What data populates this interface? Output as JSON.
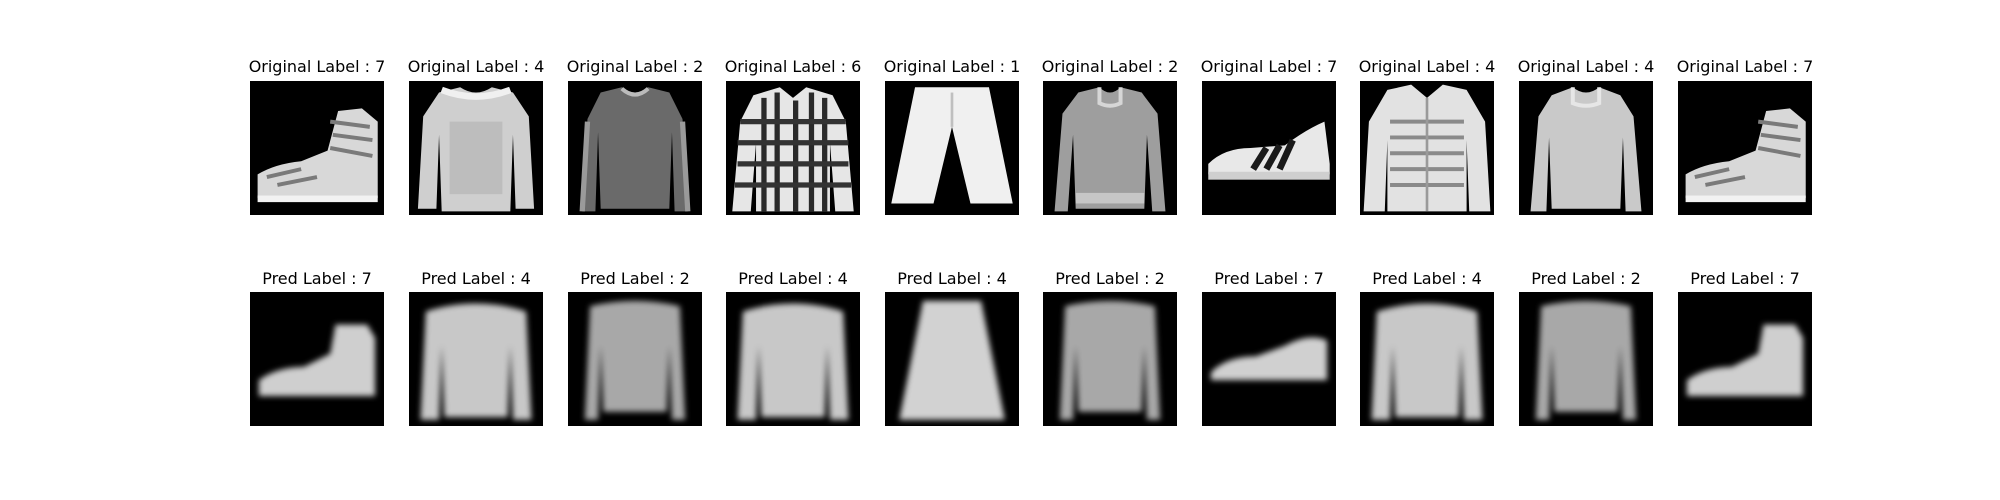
{
  "figure": {
    "rows": [
      {
        "row_name": "original",
        "items": [
          {
            "title": "Original Label : 7",
            "icon": "sneaker-high-icon",
            "style": "sharp"
          },
          {
            "title": "Original Label : 4",
            "icon": "sweater-icon",
            "style": "sharp"
          },
          {
            "title": "Original Label : 2",
            "icon": "longsleeve-dark-icon",
            "style": "sharp"
          },
          {
            "title": "Original Label : 6",
            "icon": "plaid-shirt-icon",
            "style": "sharp"
          },
          {
            "title": "Original Label : 1",
            "icon": "trouser-icon",
            "style": "sharp"
          },
          {
            "title": "Original Label : 2",
            "icon": "pullover-icon",
            "style": "sharp"
          },
          {
            "title": "Original Label : 7",
            "icon": "striped-sneaker-icon",
            "style": "sharp"
          },
          {
            "title": "Original Label : 4",
            "icon": "coat-icon",
            "style": "sharp"
          },
          {
            "title": "Original Label : 4",
            "icon": "pullover-light-icon",
            "style": "sharp"
          },
          {
            "title": "Original Label : 7",
            "icon": "sneaker-high-icon",
            "style": "sharp"
          }
        ]
      },
      {
        "row_name": "prediction",
        "items": [
          {
            "title": "Pred Label : 7",
            "icon": "blurry-sneaker-icon",
            "style": "blurry"
          },
          {
            "title": "Pred Label : 4",
            "icon": "blurry-coat-icon",
            "style": "blurry"
          },
          {
            "title": "Pred Label : 2",
            "icon": "blurry-pullover-icon",
            "style": "blurry"
          },
          {
            "title": "Pred Label : 4",
            "icon": "blurry-coat-icon",
            "style": "blurry"
          },
          {
            "title": "Pred Label : 4",
            "icon": "blurry-dress-icon",
            "style": "blurry"
          },
          {
            "title": "Pred Label : 2",
            "icon": "blurry-pullover-icon",
            "style": "blurry"
          },
          {
            "title": "Pred Label : 7",
            "icon": "blurry-flat-sneaker-icon",
            "style": "blurry"
          },
          {
            "title": "Pred Label : 4",
            "icon": "blurry-coat-icon",
            "style": "blurry"
          },
          {
            "title": "Pred Label : 2",
            "icon": "blurry-pullover-icon",
            "style": "blurry"
          },
          {
            "title": "Pred Label : 7",
            "icon": "blurry-sneaker-icon",
            "style": "blurry"
          }
        ]
      }
    ]
  }
}
